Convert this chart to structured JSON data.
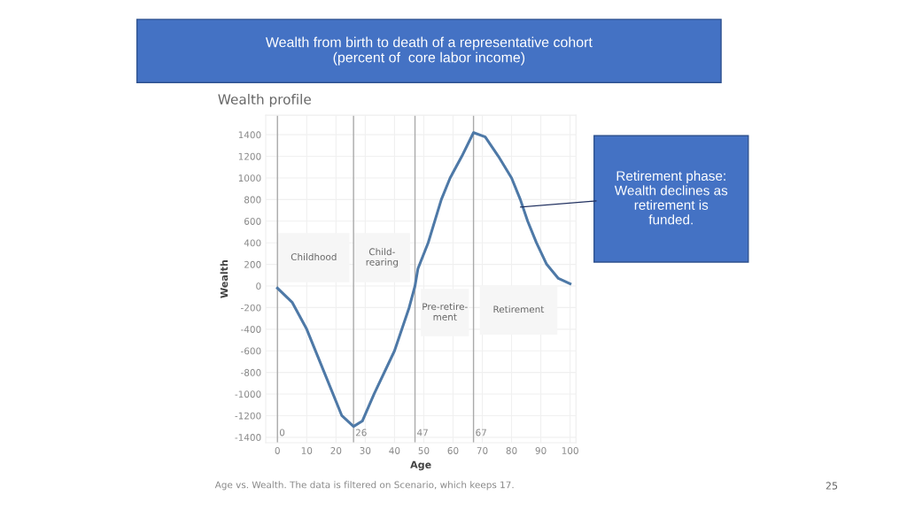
{
  "chart_data": {
    "type": "line",
    "title": "Wealth from birth to death of a representative cohort\n(percent of  core labor income)",
    "subtitle": "Wealth profile",
    "xlabel": "Age",
    "ylabel": "Wealth",
    "x": [
      0,
      5,
      10,
      16,
      22,
      26,
      29,
      33,
      40,
      45,
      47,
      48,
      51.5,
      56,
      59,
      63,
      67,
      71,
      75.5,
      80,
      83,
      85.5,
      88.5,
      92,
      96,
      100
    ],
    "series": [
      {
        "color": "#4e79a7",
        "values": [
          -20,
          -150,
          -400,
          -800,
          -1200,
          -1300,
          -1250,
          -1000,
          -600,
          -200,
          0,
          160,
          400,
          800,
          1000,
          1200,
          1420,
          1380,
          1200,
          1000,
          800,
          600,
          400,
          200,
          70,
          20
        ]
      }
    ],
    "xlim": [
      -4,
      102
    ],
    "ylim": [
      -1450,
      1580
    ],
    "xticks": [
      0,
      10,
      20,
      30,
      40,
      50,
      60,
      70,
      80,
      90,
      100
    ],
    "yticks": [
      -1400,
      -1200,
      -1000,
      -800,
      -600,
      -400,
      -200,
      0,
      200,
      400,
      600,
      800,
      1000,
      1200,
      1400
    ],
    "grid": true,
    "marker": "none",
    "line_style": "solid",
    "ref_lines": [
      {
        "axis": "x",
        "value": 0,
        "label": "0",
        "color": "#aaaaaa"
      },
      {
        "axis": "x",
        "value": 26,
        "label": "26",
        "color": "#aaaaaa"
      },
      {
        "axis": "x",
        "value": 47,
        "label": "47",
        "color": "#aaaaaa"
      },
      {
        "axis": "x",
        "value": 67,
        "label": "67",
        "color": "#aaaaaa"
      }
    ],
    "annotations": [
      "Childhood",
      "Child-\nrearing",
      "Pre-retire-\nment",
      "Retirement",
      "Retirement phase:\nWealth declines as\nretirement is\nfunded.",
      "Age vs. Wealth. The data is filtered on Scenario, which keeps 17.",
      "25"
    ]
  }
}
